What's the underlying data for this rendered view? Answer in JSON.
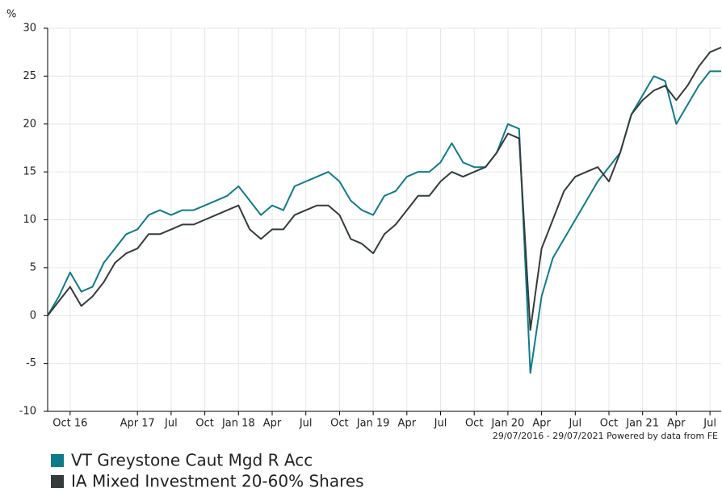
{
  "chart_data": {
    "type": "line",
    "y_label": "%",
    "footnote": "29/07/2016 - 29/07/2021 Powered by data from FE",
    "categories": [
      null,
      null,
      "Oct 16",
      null,
      null,
      null,
      null,
      null,
      "Apr 17",
      null,
      null,
      "Jul",
      null,
      null,
      "Oct",
      null,
      null,
      "Jan 18",
      null,
      null,
      "Apr",
      null,
      null,
      "Jul",
      null,
      null,
      "Oct",
      null,
      null,
      "Jan 19",
      null,
      null,
      "Apr",
      null,
      null,
      "Jul",
      null,
      null,
      "Oct",
      null,
      null,
      "Jan 20",
      null,
      null,
      "Apr",
      null,
      null,
      "Jul",
      null,
      null,
      "Oct",
      null,
      null,
      "Jan 21",
      null,
      null,
      "Apr",
      null,
      null,
      "Jul",
      null
    ],
    "series": [
      {
        "name": "VT Greystone Caut Mgd R Acc",
        "color": "#0f7b8a",
        "values": [
          0,
          2,
          4.5,
          2.5,
          3,
          5.5,
          7,
          8.5,
          9,
          10.5,
          11,
          10.5,
          11,
          11,
          11.5,
          12,
          12.5,
          13.5,
          12,
          10.5,
          11.5,
          11,
          13.5,
          14,
          14.5,
          15,
          14,
          12,
          11,
          10.5,
          12.5,
          13,
          14.5,
          15,
          15,
          16,
          18,
          16,
          15.5,
          15.5,
          17,
          20,
          19.5,
          -6,
          2,
          6,
          8,
          10,
          12,
          14,
          15.5,
          17,
          21,
          23,
          25,
          24.5,
          20,
          22,
          24,
          25.5,
          25.5
        ]
      },
      {
        "name": "IA Mixed Investment 20-60% Shares",
        "color": "#343c3b",
        "values": [
          0,
          1.5,
          3,
          1,
          2,
          3.5,
          5.5,
          6.5,
          7,
          8.5,
          8.5,
          9,
          9.5,
          9.5,
          10,
          10.5,
          11,
          11.5,
          9,
          8,
          9,
          9,
          10.5,
          11,
          11.5,
          11.5,
          10.5,
          8,
          7.5,
          6.5,
          8.5,
          9.5,
          11,
          12.5,
          12.5,
          14,
          15,
          14.5,
          15,
          15.5,
          17,
          19,
          18.5,
          -1.5,
          7,
          10,
          13,
          14.5,
          15,
          15.5,
          14,
          17,
          21,
          22.5,
          23.5,
          24,
          22.5,
          24,
          26,
          27.5,
          28
        ]
      }
    ],
    "ylim": [
      -10,
      30
    ],
    "yticks": [
      -10,
      -5,
      0,
      5,
      10,
      15,
      20,
      25,
      30
    ],
    "grid": true
  }
}
